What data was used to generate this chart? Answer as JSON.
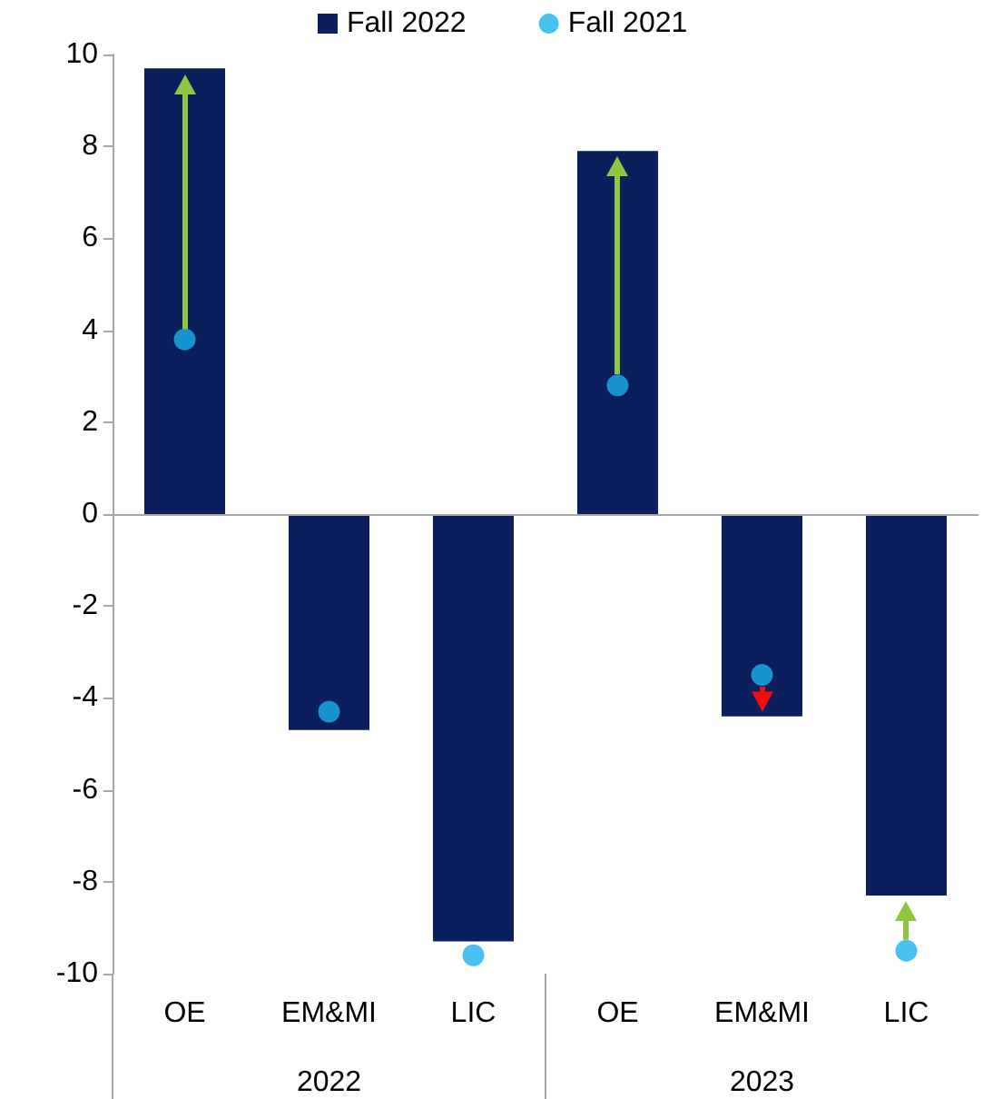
{
  "chart_data": {
    "type": "bar",
    "categories": [
      "OE",
      "EM&MI",
      "LIC",
      "OE",
      "EM&MI",
      "LIC"
    ],
    "series": [
      {
        "name": "Fall 2022",
        "color": "#0b1f5c",
        "values": [
          9.7,
          -4.7,
          -9.3,
          7.9,
          -4.4,
          -8.3
        ]
      },
      {
        "name": "Fall 2021",
        "type": "scatter",
        "color": "#1ab0ec",
        "values": [
          3.8,
          -4.3,
          -9.6,
          2.8,
          -3.5,
          -9.5
        ]
      }
    ],
    "annotations": [
      "2022",
      "2023"
    ],
    "ylim": [
      -10,
      10
    ],
    "yticks": [
      -10,
      -8,
      -6,
      -4,
      -2,
      0,
      2,
      4,
      6,
      8,
      10
    ],
    "ref_lines": [
      {
        "axis": "y",
        "value": 0,
        "color": "#a6a6a6"
      }
    ],
    "grid": false,
    "legend": "top",
    "marker": "circle"
  }
}
